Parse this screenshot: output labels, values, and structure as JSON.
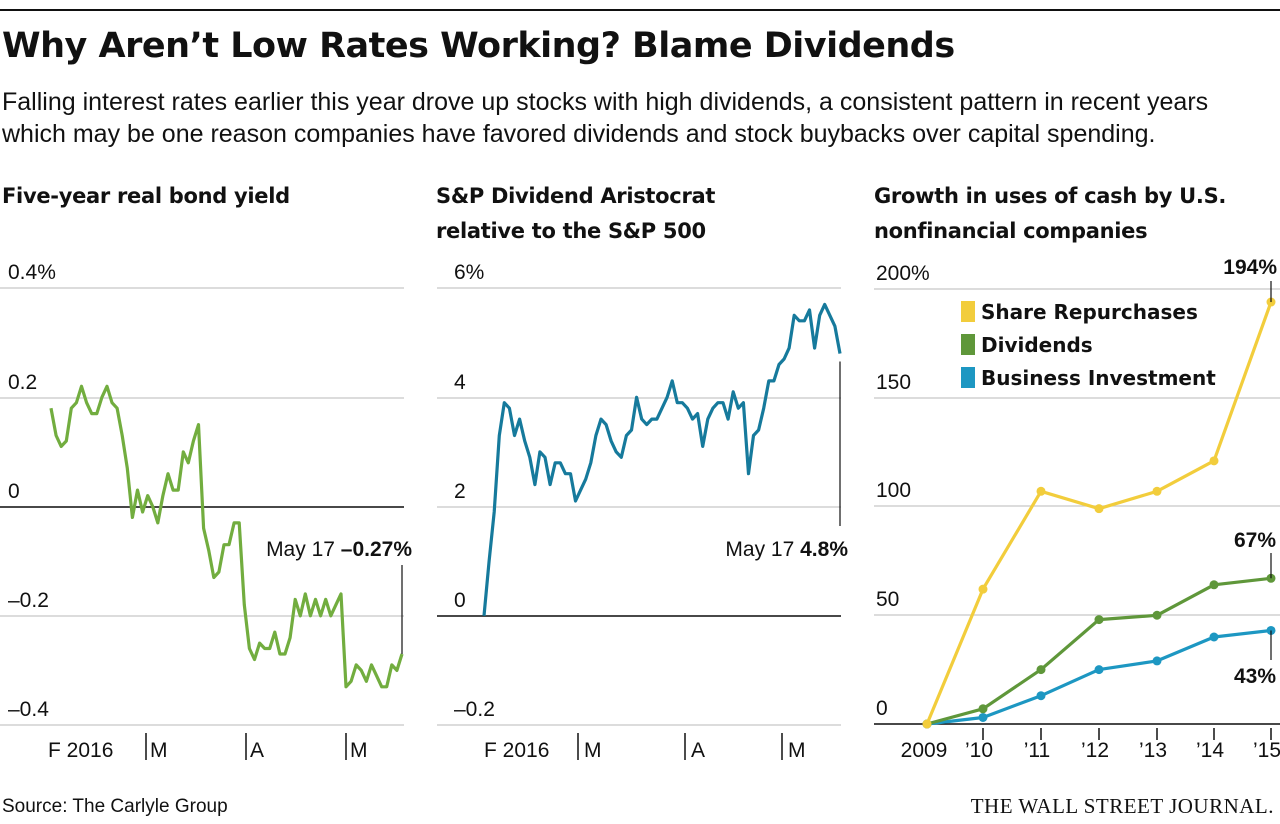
{
  "headline": "Why Aren’t Low Rates Working? Blame Dividends",
  "dek": "Falling interest rates earlier this year drove up stocks with high dividends, a consistent pattern in recent years which may be one reason companies have favored dividends and stock buybacks over capital spending.",
  "source": "Source: The Carlyle Group",
  "brand": "THE WALL STREET JOURNAL.",
  "colors": {
    "green": "#72ad3f",
    "teal": "#167a9c",
    "yellow": "#f2cd3c",
    "dark_green": "#5f973a",
    "blue": "#1d97c2"
  },
  "chart_data": [
    {
      "type": "line",
      "title": "Five-year real bond yield",
      "y_ticks": [
        "0.4%",
        "0.2",
        "0",
        "–0.2",
        "–0.4"
      ],
      "x_ticks": [
        "F 2016",
        "M",
        "A",
        "M"
      ],
      "ylim": [
        -0.4,
        0.4
      ],
      "zero_line": true,
      "annotation": {
        "label": "May 17",
        "value": "–0.27%"
      },
      "series": [
        {
          "values": [
            0.18,
            0.13,
            0.11,
            0.12,
            0.18,
            0.19,
            0.22,
            0.19,
            0.17,
            0.17,
            0.2,
            0.22,
            0.19,
            0.18,
            0.13,
            0.07,
            -0.02,
            0.03,
            -0.01,
            0.02,
            0.0,
            -0.03,
            0.02,
            0.06,
            0.03,
            0.03,
            0.1,
            0.08,
            0.12,
            0.15,
            -0.04,
            -0.08,
            -0.13,
            -0.12,
            -0.07,
            -0.07,
            -0.03,
            -0.03,
            -0.18,
            -0.26,
            -0.28,
            -0.25,
            -0.26,
            -0.26,
            -0.23,
            -0.27,
            -0.27,
            -0.24,
            -0.17,
            -0.2,
            -0.16,
            -0.2,
            -0.17,
            -0.2,
            -0.17,
            -0.2,
            -0.18,
            -0.16,
            -0.33,
            -0.32,
            -0.29,
            -0.3,
            -0.32,
            -0.29,
            -0.31,
            -0.33,
            -0.33,
            -0.29,
            -0.3,
            -0.27
          ]
        }
      ]
    },
    {
      "type": "line",
      "title": "S&P Dividend Aristocrat relative to the S&P 500",
      "y_ticks": [
        "6%",
        "4",
        "2",
        "0",
        "–0.2"
      ],
      "x_ticks": [
        "F 2016",
        "M",
        "A",
        "M"
      ],
      "ylim": [
        -2,
        6
      ],
      "zero_line": true,
      "annotation": {
        "label": "May 17",
        "value": "4.8%"
      },
      "series": [
        {
          "values": [
            0.0,
            1.0,
            1.9,
            3.3,
            3.9,
            3.8,
            3.3,
            3.6,
            3.2,
            2.9,
            2.4,
            3.0,
            2.9,
            2.4,
            2.8,
            2.8,
            2.6,
            2.6,
            2.1,
            2.3,
            2.5,
            2.8,
            3.3,
            3.6,
            3.5,
            3.2,
            3.0,
            2.9,
            3.3,
            3.4,
            4.0,
            3.6,
            3.5,
            3.6,
            3.6,
            3.8,
            4.0,
            4.3,
            3.9,
            3.9,
            3.8,
            3.6,
            3.7,
            3.1,
            3.6,
            3.8,
            3.9,
            3.9,
            3.6,
            4.1,
            3.8,
            3.9,
            2.6,
            3.3,
            3.4,
            3.8,
            4.3,
            4.3,
            4.6,
            4.7,
            4.9,
            5.5,
            5.4,
            5.4,
            5.6,
            4.9,
            5.5,
            5.7,
            5.5,
            5.3,
            4.8
          ]
        }
      ]
    },
    {
      "type": "line",
      "title": "Growth in uses of cash by U.S. nonfinancial companies",
      "categories": [
        "2009",
        "’10",
        "’11",
        "’12",
        "’13",
        "’14",
        "’15"
      ],
      "y_ticks": [
        "200%",
        "150",
        "100",
        "50",
        "0"
      ],
      "ylim": [
        0,
        200
      ],
      "legend": "top-left",
      "series": [
        {
          "name": "Share Repurchases",
          "values": [
            0,
            62,
            107,
            99,
            107,
            121,
            194
          ],
          "end_label": "194%"
        },
        {
          "name": "Dividends",
          "values": [
            0,
            7,
            25,
            48,
            50,
            64,
            67
          ],
          "end_label": "67%"
        },
        {
          "name": "Business Investment",
          "values": [
            0,
            3,
            13,
            25,
            29,
            40,
            43
          ],
          "end_label": "43%"
        }
      ]
    }
  ]
}
